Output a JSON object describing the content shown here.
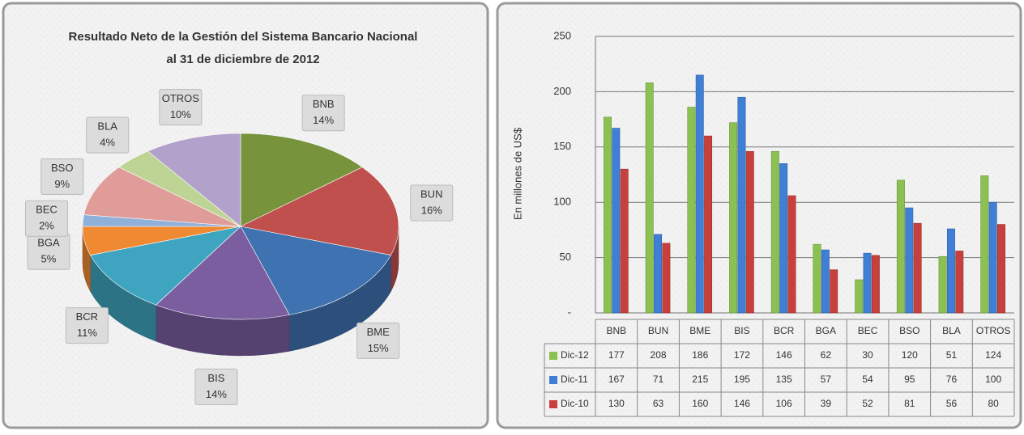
{
  "chart_data": [
    {
      "type": "pie",
      "title": [
        "Resultado Neto de la Gestión del Sistema Bancario Nacional",
        "al 31 de diciembre de 2012"
      ],
      "categories": [
        "BNB",
        "BUN",
        "BME",
        "BIS",
        "BCR",
        "BGA",
        "BEC",
        "BSO",
        "BLA",
        "OTROS"
      ],
      "values": [
        14,
        16,
        15,
        14,
        11,
        5,
        2,
        9,
        4,
        10
      ],
      "value_labels": [
        "14%",
        "16%",
        "15%",
        "14%",
        "11%",
        "5%",
        "2%",
        "9%",
        "4%",
        "10%"
      ],
      "colors": [
        "#77933c",
        "#c0504d",
        "#3f72b0",
        "#7a5ea0",
        "#3fa4c0",
        "#f08a32",
        "#8fb0d8",
        "#e09c99",
        "#bdd494",
        "#b2a1cb"
      ]
    },
    {
      "type": "bar",
      "ylabel": "En millones de US$",
      "categories": [
        "BNB",
        "BUN",
        "BME",
        "BIS",
        "BCR",
        "BGA",
        "BEC",
        "BSO",
        "BLA",
        "OTROS"
      ],
      "series": [
        {
          "name": "Dic-12",
          "color": "#8cc152",
          "values": [
            177,
            208,
            186,
            172,
            146,
            62,
            30,
            120,
            51,
            124
          ]
        },
        {
          "name": "Dic-11",
          "color": "#3f7fd6",
          "values": [
            167,
            71,
            215,
            195,
            135,
            57,
            54,
            95,
            76,
            100
          ]
        },
        {
          "name": "Dic-10",
          "color": "#c8403c",
          "values": [
            130,
            63,
            160,
            146,
            106,
            39,
            52,
            81,
            56,
            80
          ]
        }
      ],
      "ylim": [
        0,
        250
      ],
      "yticks": [
        {
          "value": 0,
          "label": "-"
        },
        50,
        100,
        150,
        200,
        250
      ],
      "grid": true
    }
  ]
}
